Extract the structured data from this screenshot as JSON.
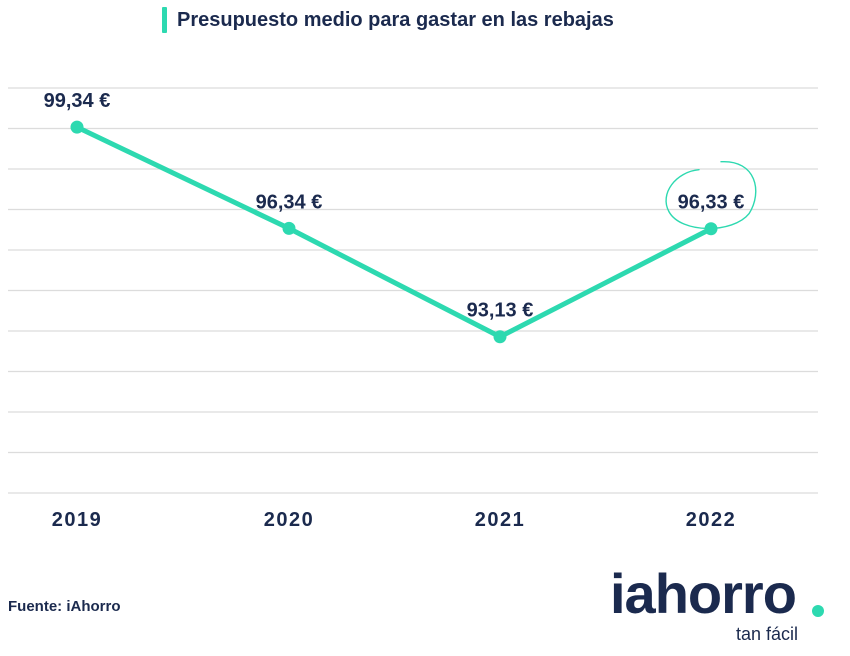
{
  "title": "Presupuesto medio para gastar en las rebajas",
  "source": "Fuente: iAhorro",
  "logo": {
    "word": "iahorro",
    "tagline": "tan fácil"
  },
  "colors": {
    "line": "#2dd9b0",
    "text": "#1b2a4e",
    "grid": "#dcdcdc"
  },
  "chart_data": {
    "type": "line",
    "categories": [
      "2019",
      "2020",
      "2021",
      "2022"
    ],
    "values": [
      99.34,
      96.34,
      93.13,
      96.33
    ],
    "labels": [
      "99,34 €",
      "96,34 €",
      "93,13 €",
      "96,33 €"
    ],
    "highlight_index": 3,
    "ylim": [
      88.5,
      100.5
    ],
    "grid": true,
    "legend": "none"
  }
}
